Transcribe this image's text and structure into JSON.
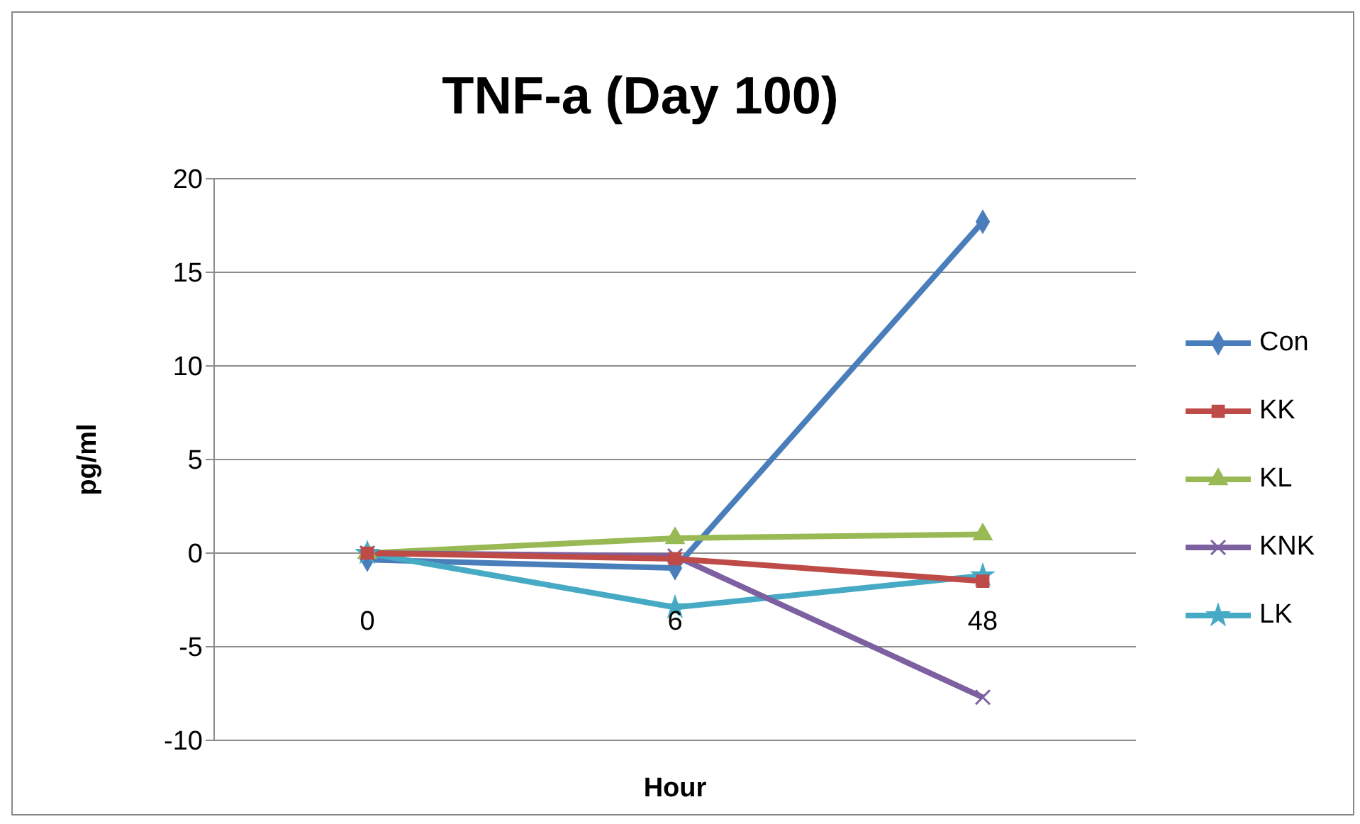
{
  "chart_data": {
    "type": "line",
    "title": "TNF-a (Day 100)",
    "xlabel": "Hour",
    "ylabel": "pg/ml",
    "categories": [
      "0",
      "6",
      "48"
    ],
    "series": [
      {
        "name": "Con",
        "color": "#4a7ebb",
        "marker": "diamond",
        "values": [
          -0.35,
          -0.8,
          17.7
        ]
      },
      {
        "name": "KK",
        "color": "#be4b48",
        "marker": "square",
        "values": [
          0,
          -0.3,
          -1.5
        ]
      },
      {
        "name": "KL",
        "color": "#98b954",
        "marker": "triangle",
        "values": [
          0,
          0.8,
          1.0
        ]
      },
      {
        "name": "KNK",
        "color": "#7d60a0",
        "marker": "cross",
        "values": [
          0,
          -0.15,
          -7.7
        ]
      },
      {
        "name": "LK",
        "color": "#46aac5",
        "marker": "star",
        "values": [
          0,
          -2.9,
          -1.2
        ]
      }
    ],
    "ylim": [
      -10,
      20
    ],
    "yticks": [
      -10,
      -5,
      0,
      5,
      10,
      15,
      20
    ],
    "grid": "y",
    "legend": "right",
    "line_style": "solid"
  }
}
